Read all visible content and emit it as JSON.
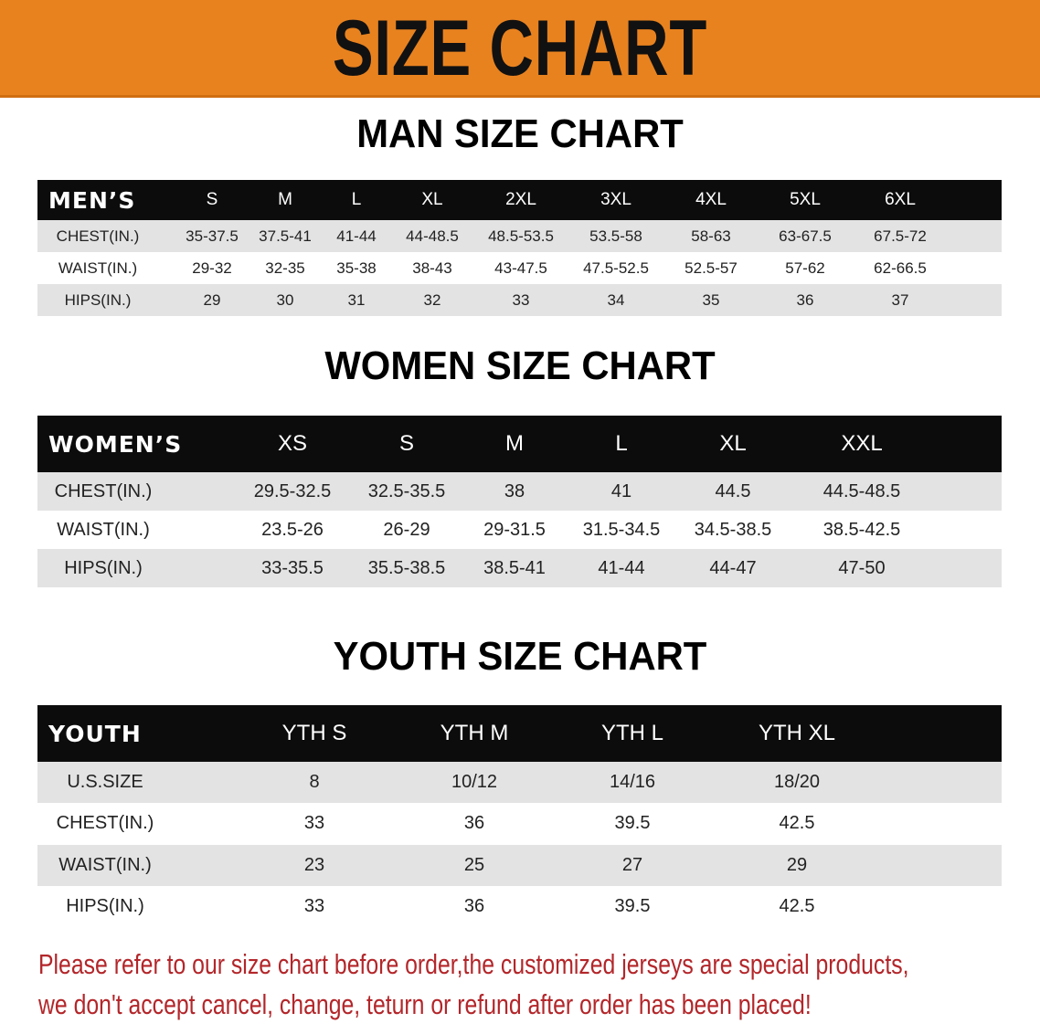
{
  "banner": {
    "title": "SIZE CHART",
    "color": "#e8821f"
  },
  "men": {
    "title": "MAN SIZE CHART",
    "header": [
      "MEN’S",
      "S",
      "M",
      "L",
      "XL",
      "2XL",
      "3XL",
      "4XL",
      "5XL",
      "6XL"
    ],
    "rows": [
      [
        "CHEST(IN.)",
        "35-37.5",
        "37.5-41",
        "41-44",
        "44-48.5",
        "48.5-53.5",
        "53.5-58",
        "58-63",
        "63-67.5",
        "67.5-72"
      ],
      [
        "WAIST(IN.)",
        "29-32",
        "32-35",
        "35-38",
        "38-43",
        "43-47.5",
        "47.5-52.5",
        "52.5-57",
        "57-62",
        "62-66.5"
      ],
      [
        "HIPS(IN.)",
        "29",
        "30",
        "31",
        "32",
        "33",
        "34",
        "35",
        "36",
        "37"
      ]
    ]
  },
  "women": {
    "title": "WOMEN SIZE CHART",
    "header": [
      "WOMEN’S",
      "XS",
      "S",
      "M",
      "L",
      "XL",
      "XXL"
    ],
    "rows": [
      [
        "CHEST(IN.)",
        "29.5-32.5",
        "32.5-35.5",
        "38",
        "41",
        "44.5",
        "44.5-48.5"
      ],
      [
        "WAIST(IN.)",
        "23.5-26",
        "26-29",
        "29-31.5",
        "31.5-34.5",
        "34.5-38.5",
        "38.5-42.5"
      ],
      [
        "HIPS(IN.)",
        "33-35.5",
        "35.5-38.5",
        "38.5-41",
        "41-44",
        "44-47",
        "47-50"
      ]
    ]
  },
  "youth": {
    "title": "YOUTH SIZE CHART",
    "header": [
      "YOUTH",
      "YTH S",
      "YTH M",
      "YTH L",
      "YTH XL"
    ],
    "rows": [
      [
        "U.S.SIZE",
        "8",
        "10/12",
        "14/16",
        "18/20"
      ],
      [
        "CHEST(IN.)",
        "33",
        "36",
        "39.5",
        "42.5"
      ],
      [
        "WAIST(IN.)",
        "23",
        "25",
        "27",
        "29"
      ],
      [
        "HIPS(IN.)",
        "33",
        "36",
        "39.5",
        "42.5"
      ]
    ]
  },
  "notice": {
    "line1": "Please refer to our size chart before order,the customized jerseys are special products,",
    "line2": "we don't accept cancel, change, teturn or refund after order has been placed!",
    "color": "#b3262a"
  }
}
